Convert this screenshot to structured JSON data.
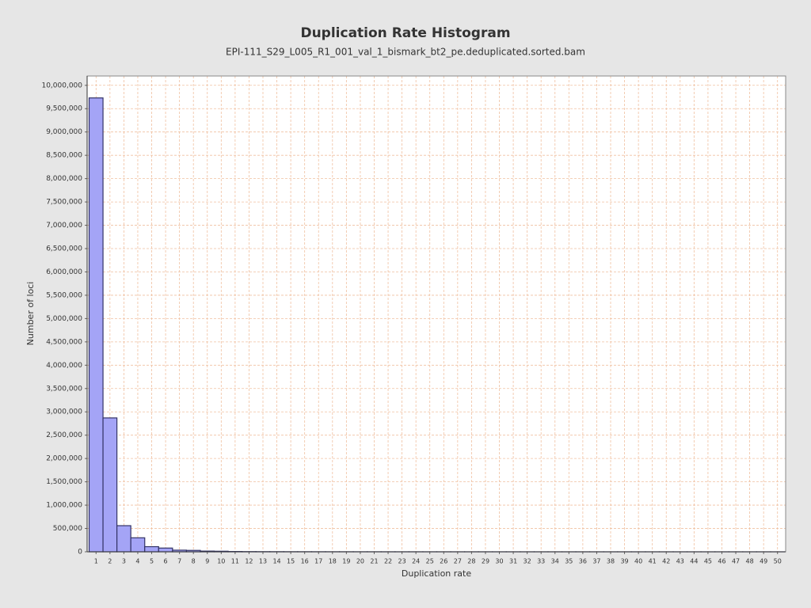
{
  "chart_data": {
    "type": "bar",
    "title": "Duplication Rate Histogram",
    "subtitle": "EPI-111_S29_L005_R1_001_val_1_bismark_bt2_pe.deduplicated.sorted.bam",
    "x_label": "Duplication rate",
    "y_label": "Number of loci",
    "categories": [
      1,
      2,
      3,
      4,
      5,
      6,
      7,
      8,
      9,
      10,
      11,
      12,
      13,
      14,
      15,
      16,
      17,
      18,
      19,
      20,
      21,
      22,
      23,
      24,
      25,
      26,
      27,
      28,
      29,
      30,
      31,
      32,
      33,
      34,
      35,
      36,
      37,
      38,
      39,
      40,
      41,
      42,
      43,
      44,
      45,
      46,
      47,
      48,
      49,
      50
    ],
    "values": [
      9730000,
      2870000,
      560000,
      300000,
      110000,
      80000,
      35000,
      30000,
      15000,
      12000,
      6000,
      4000,
      3000,
      2500,
      2000,
      1800,
      1500,
      1300,
      1200,
      1000,
      900,
      800,
      700,
      650,
      600,
      550,
      500,
      480,
      450,
      420,
      400,
      380,
      360,
      340,
      320,
      300,
      290,
      280,
      270,
      260,
      250,
      240,
      230,
      220,
      210,
      200,
      200,
      190,
      180,
      170
    ],
    "color": "#a4a4f6",
    "edge_color": "#333366",
    "ylim": [
      0,
      10200000
    ],
    "yticks": [
      0,
      {
        "value": 500000,
        "label": "500,000"
      },
      {
        "value": 1000000,
        "label": "1,000,000"
      },
      {
        "value": 1500000,
        "label": "1,500,000"
      },
      {
        "value": 2000000,
        "label": "2,000,000"
      },
      {
        "value": 2500000,
        "label": "2,500,000"
      },
      {
        "value": 3000000,
        "label": "3,000,000"
      },
      {
        "value": 3500000,
        "label": "3,500,000"
      },
      {
        "value": 4000000,
        "label": "4,000,000"
      },
      {
        "value": 4500000,
        "label": "4,500,000"
      },
      {
        "value": 5000000,
        "label": "5,000,000"
      },
      {
        "value": 5500000,
        "label": "5,500,000"
      },
      {
        "value": 6000000,
        "label": "6,000,000"
      },
      {
        "value": 6500000,
        "label": "6,500,000"
      },
      {
        "value": 7000000,
        "label": "7,000,000"
      },
      {
        "value": 7500000,
        "label": "7,500,000"
      },
      {
        "value": 8000000,
        "label": "8,000,000"
      },
      {
        "value": 8500000,
        "label": "8,500,000"
      },
      {
        "value": 9000000,
        "label": "9,000,000"
      },
      {
        "value": 9500000,
        "label": "9,500,000"
      },
      {
        "value": 10000000,
        "label": "10,000,000"
      }
    ],
    "grid": true
  }
}
